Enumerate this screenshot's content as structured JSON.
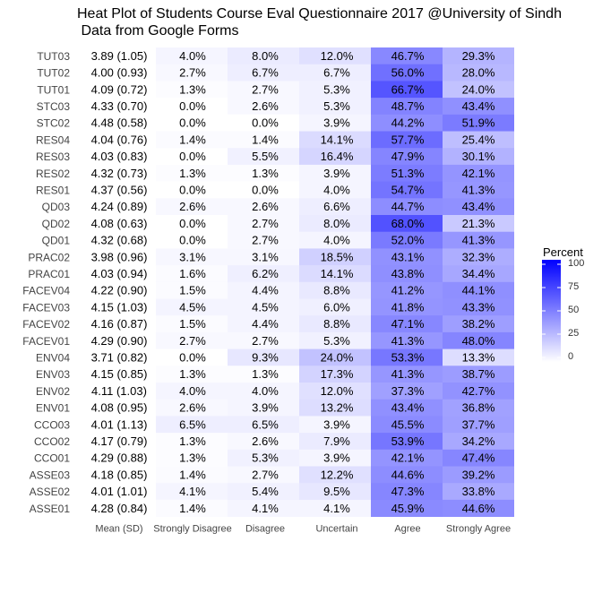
{
  "chart_data": {
    "type": "heatmap",
    "title": "Heat Plot of Students Course Eval Questionnaire 2017 @University of Sindh\n Data from Google Forms",
    "columns": [
      "Mean (SD)",
      "Strongly Disagree",
      "Disagree",
      "Uncertain",
      "Agree",
      "Strongly Agree"
    ],
    "rows": [
      {
        "label": "TUT03",
        "mean_sd": "3.89 (1.05)",
        "values": [
          4.0,
          8.0,
          12.0,
          46.7,
          29.3
        ]
      },
      {
        "label": "TUT02",
        "mean_sd": "4.00 (0.93)",
        "values": [
          2.7,
          6.7,
          6.7,
          56.0,
          28.0
        ]
      },
      {
        "label": "TUT01",
        "mean_sd": "4.09 (0.72)",
        "values": [
          1.3,
          2.7,
          5.3,
          66.7,
          24.0
        ]
      },
      {
        "label": "STC03",
        "mean_sd": "4.33 (0.70)",
        "values": [
          0.0,
          2.6,
          5.3,
          48.7,
          43.4
        ]
      },
      {
        "label": "STC02",
        "mean_sd": "4.48 (0.58)",
        "values": [
          0.0,
          0.0,
          3.9,
          44.2,
          51.9
        ]
      },
      {
        "label": "RES04",
        "mean_sd": "4.04 (0.76)",
        "values": [
          1.4,
          1.4,
          14.1,
          57.7,
          25.4
        ]
      },
      {
        "label": "RES03",
        "mean_sd": "4.03 (0.83)",
        "values": [
          0.0,
          5.5,
          16.4,
          47.9,
          30.1
        ]
      },
      {
        "label": "RES02",
        "mean_sd": "4.32 (0.73)",
        "values": [
          1.3,
          1.3,
          3.9,
          51.3,
          42.1
        ]
      },
      {
        "label": "RES01",
        "mean_sd": "4.37 (0.56)",
        "values": [
          0.0,
          0.0,
          4.0,
          54.7,
          41.3
        ]
      },
      {
        "label": "QD03",
        "mean_sd": "4.24 (0.89)",
        "values": [
          2.6,
          2.6,
          6.6,
          44.7,
          43.4
        ]
      },
      {
        "label": "QD02",
        "mean_sd": "4.08 (0.63)",
        "values": [
          0.0,
          2.7,
          8.0,
          68.0,
          21.3
        ]
      },
      {
        "label": "QD01",
        "mean_sd": "4.32 (0.68)",
        "values": [
          0.0,
          2.7,
          4.0,
          52.0,
          41.3
        ]
      },
      {
        "label": "PRAC02",
        "mean_sd": "3.98 (0.96)",
        "values": [
          3.1,
          3.1,
          18.5,
          43.1,
          32.3
        ]
      },
      {
        "label": "PRAC01",
        "mean_sd": "4.03 (0.94)",
        "values": [
          1.6,
          6.2,
          14.1,
          43.8,
          34.4
        ]
      },
      {
        "label": "FACEV04",
        "mean_sd": "4.22 (0.90)",
        "values": [
          1.5,
          4.4,
          8.8,
          41.2,
          44.1
        ]
      },
      {
        "label": "FACEV03",
        "mean_sd": "4.15 (1.03)",
        "values": [
          4.5,
          4.5,
          6.0,
          41.8,
          43.3
        ]
      },
      {
        "label": "FACEV02",
        "mean_sd": "4.16 (0.87)",
        "values": [
          1.5,
          4.4,
          8.8,
          47.1,
          38.2
        ]
      },
      {
        "label": "FACEV01",
        "mean_sd": "4.29 (0.90)",
        "values": [
          2.7,
          2.7,
          5.3,
          41.3,
          48.0
        ]
      },
      {
        "label": "ENV04",
        "mean_sd": "3.71 (0.82)",
        "values": [
          0.0,
          9.3,
          24.0,
          53.3,
          13.3
        ]
      },
      {
        "label": "ENV03",
        "mean_sd": "4.15 (0.85)",
        "values": [
          1.3,
          1.3,
          17.3,
          41.3,
          38.7
        ]
      },
      {
        "label": "ENV02",
        "mean_sd": "4.11 (1.03)",
        "values": [
          4.0,
          4.0,
          12.0,
          37.3,
          42.7
        ]
      },
      {
        "label": "ENV01",
        "mean_sd": "4.08 (0.95)",
        "values": [
          2.6,
          3.9,
          13.2,
          43.4,
          36.8
        ]
      },
      {
        "label": "CCO03",
        "mean_sd": "4.01 (1.13)",
        "values": [
          6.5,
          6.5,
          3.9,
          45.5,
          37.7
        ]
      },
      {
        "label": "CCO02",
        "mean_sd": "4.17 (0.79)",
        "values": [
          1.3,
          2.6,
          7.9,
          53.9,
          34.2
        ]
      },
      {
        "label": "CCO01",
        "mean_sd": "4.29 (0.88)",
        "values": [
          1.3,
          5.3,
          3.9,
          42.1,
          47.4
        ]
      },
      {
        "label": "ASSE03",
        "mean_sd": "4.18 (0.85)",
        "values": [
          1.4,
          2.7,
          12.2,
          44.6,
          39.2
        ]
      },
      {
        "label": "ASSE02",
        "mean_sd": "4.01 (1.01)",
        "values": [
          4.1,
          5.4,
          9.5,
          47.3,
          33.8
        ]
      },
      {
        "label": "ASSE01",
        "mean_sd": "4.28 (0.84)",
        "values": [
          1.4,
          4.1,
          4.1,
          45.9,
          44.6
        ]
      }
    ],
    "legend": {
      "title": "Percent",
      "ticks": [
        100,
        75,
        50,
        25,
        0
      ],
      "range": [
        0,
        100
      ],
      "low_color": "#ffffff",
      "high_color": "#0000ff",
      "placement": "right"
    }
  }
}
